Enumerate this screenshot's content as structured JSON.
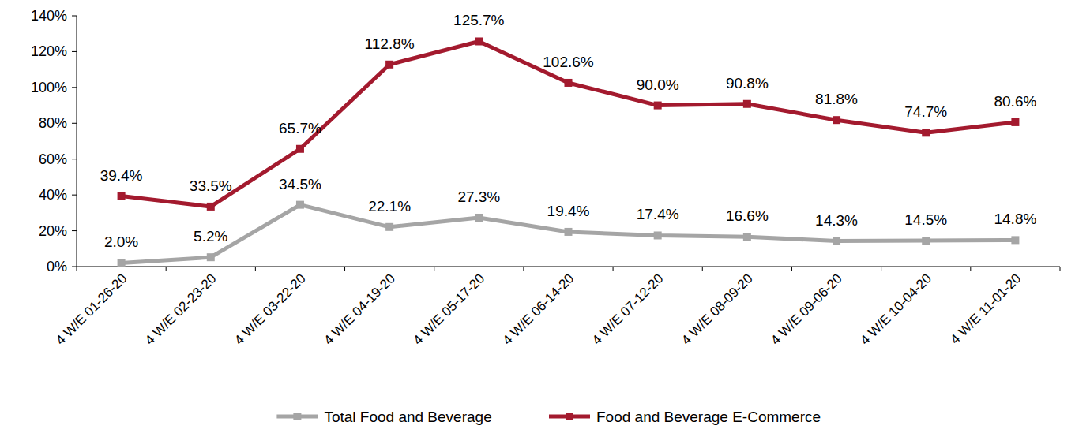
{
  "chart_data": {
    "type": "line",
    "categories": [
      "4 W/E 01-26-20",
      "4 W/E 02-23-20",
      "4 W/E 03-22-20",
      "4 W/E 04-19-20",
      "4 W/E 05-17-20",
      "4 W/E 06-14-20",
      "4 W/E 07-12-20",
      "4 W/E 08-09-20",
      "4 W/E 09-06-20",
      "4 W/E 10-04-20",
      "4 W/E 11-01-20"
    ],
    "series": [
      {
        "name": "Total Food and Beverage",
        "color": "#A5A5A5",
        "marker": "square",
        "values": [
          2.0,
          5.2,
          34.5,
          22.1,
          27.3,
          19.4,
          17.4,
          16.6,
          14.3,
          14.5,
          14.8
        ],
        "value_labels": [
          "2.0%",
          "5.2%",
          "34.5%",
          "22.1%",
          "27.3%",
          "19.4%",
          "17.4%",
          "16.6%",
          "14.3%",
          "14.5%",
          "14.8%"
        ]
      },
      {
        "name": "Food and Beverage E-Commerce",
        "color": "#A31A2E",
        "marker": "square",
        "values": [
          39.4,
          33.5,
          65.7,
          112.8,
          125.7,
          102.6,
          90.0,
          90.8,
          81.8,
          74.7,
          80.6
        ],
        "value_labels": [
          "39.4%",
          "33.5%",
          "65.7%",
          "112.8%",
          "125.7%",
          "102.6%",
          "90.0%",
          "90.8%",
          "81.8%",
          "74.7%",
          "80.6%"
        ]
      }
    ],
    "ylim": [
      0,
      140
    ],
    "yticks": [
      {
        "value": 0,
        "label": "0%"
      },
      {
        "value": 20,
        "label": "20%"
      },
      {
        "value": 40,
        "label": "40%"
      },
      {
        "value": 60,
        "label": "60%"
      },
      {
        "value": 80,
        "label": "80%"
      },
      {
        "value": 100,
        "label": "100%"
      },
      {
        "value": 120,
        "label": "120%"
      },
      {
        "value": 140,
        "label": "140%"
      }
    ],
    "grid": false,
    "legend": "bottom",
    "data_labels": true
  }
}
